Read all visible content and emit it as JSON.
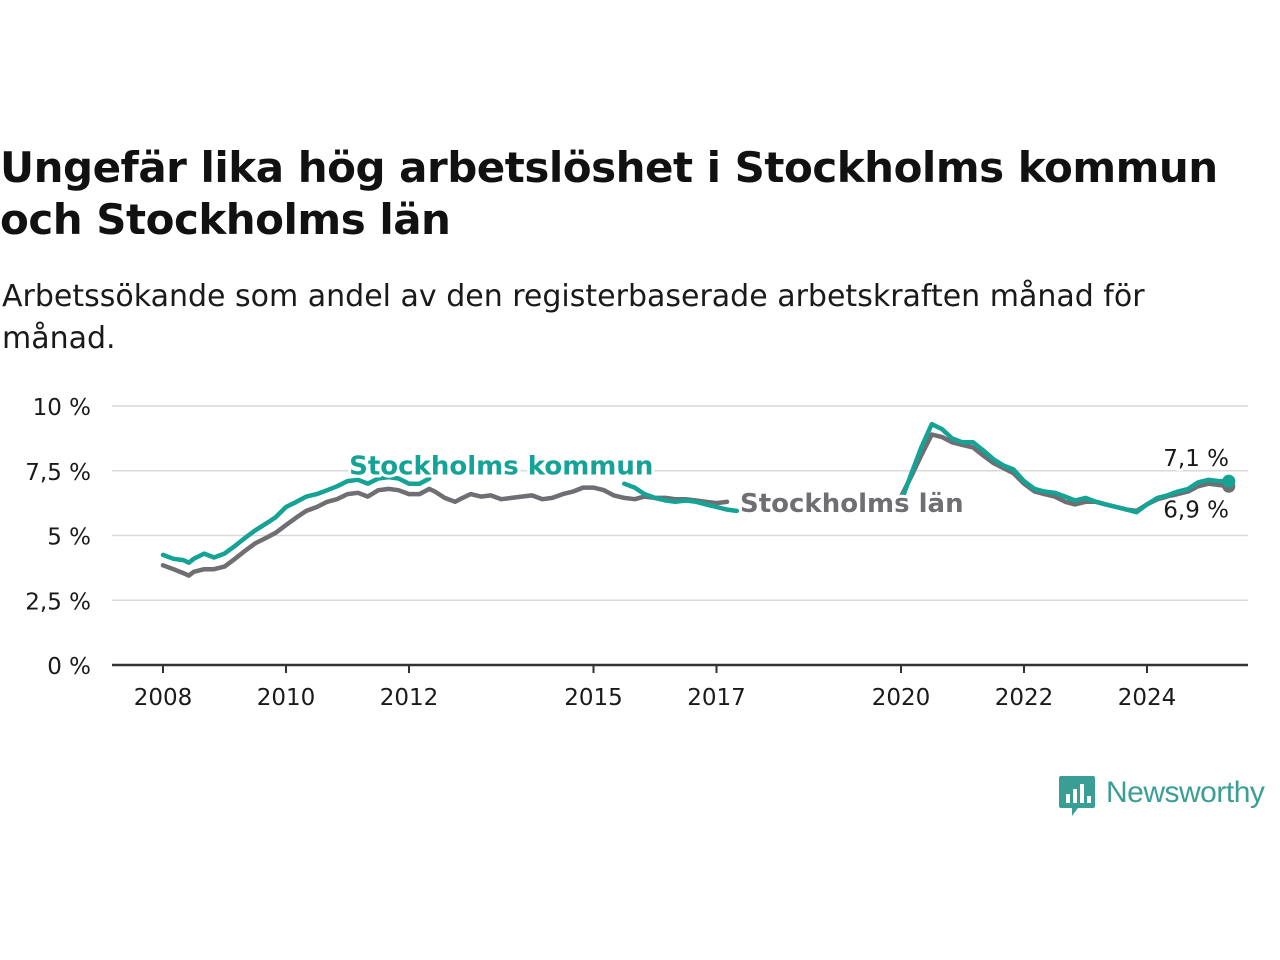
{
  "title": "Ungefär lika hög arbetslöshet i Stockholms kommun och Stockholms län",
  "subtitle": "Arbetssökande som andel av den registerbaserade arbetskraften månad för månad.",
  "brand": {
    "name": "Newsworthy",
    "color": "#3a9e95"
  },
  "chart_data": {
    "type": "line",
    "title": "Ungefär lika hög arbetslöshet i Stockholms kommun och Stockholms län",
    "subtitle": "Arbetssökande som andel av den registerbaserade arbetskraften månad för månad.",
    "xlabel": "",
    "ylabel": "",
    "ylim": [
      0,
      10
    ],
    "xlim": [
      2007.2,
      2025.5
    ],
    "grid": "horizontal",
    "y_ticks": [
      {
        "value": 0,
        "label": "0 %"
      },
      {
        "value": 2.5,
        "label": "2,5 %"
      },
      {
        "value": 5,
        "label": "5 %"
      },
      {
        "value": 7.5,
        "label": "7,5 %"
      },
      {
        "value": 10,
        "label": "10 %"
      }
    ],
    "x_ticks": [
      {
        "value": 2008.0,
        "label": "2008"
      },
      {
        "value": 2010.0,
        "label": "2010"
      },
      {
        "value": 2012.0,
        "label": "2012"
      },
      {
        "value": 2015.0,
        "label": "2015"
      },
      {
        "value": 2017.0,
        "label": "2017"
      },
      {
        "value": 2020.0,
        "label": "2020"
      },
      {
        "value": 2022.0,
        "label": "2022"
      },
      {
        "value": 2024.0,
        "label": "2024"
      }
    ],
    "series": [
      {
        "name": "Stockholms län",
        "color": "#6e6e73",
        "end_label": "6,9 %",
        "segments": [
          [
            [
              2008.0,
              3.85
            ],
            [
              2008.17,
              3.7
            ],
            [
              2008.33,
              3.55
            ],
            [
              2008.42,
              3.45
            ],
            [
              2008.5,
              3.6
            ],
            [
              2008.67,
              3.7
            ],
            [
              2008.83,
              3.7
            ],
            [
              2009.0,
              3.8
            ],
            [
              2009.17,
              4.1
            ],
            [
              2009.33,
              4.4
            ],
            [
              2009.5,
              4.7
            ],
            [
              2009.67,
              4.9
            ],
            [
              2009.83,
              5.1
            ],
            [
              2010.0,
              5.4
            ],
            [
              2010.17,
              5.7
            ],
            [
              2010.33,
              5.95
            ],
            [
              2010.5,
              6.1
            ],
            [
              2010.67,
              6.3
            ],
            [
              2010.83,
              6.4
            ],
            [
              2011.0,
              6.6
            ],
            [
              2011.17,
              6.65
            ],
            [
              2011.33,
              6.5
            ],
            [
              2011.5,
              6.75
            ],
            [
              2011.67,
              6.8
            ],
            [
              2011.83,
              6.75
            ],
            [
              2012.0,
              6.6
            ],
            [
              2012.17,
              6.6
            ],
            [
              2012.33,
              6.8
            ],
            [
              2012.42,
              6.7
            ],
            [
              2012.58,
              6.45
            ],
            [
              2012.75,
              6.3
            ],
            [
              2012.83,
              6.4
            ],
            [
              2013.0,
              6.6
            ],
            [
              2013.17,
              6.5
            ],
            [
              2013.33,
              6.55
            ],
            [
              2013.5,
              6.4
            ],
            [
              2013.67,
              6.45
            ],
            [
              2013.83,
              6.5
            ],
            [
              2014.0,
              6.55
            ],
            [
              2014.17,
              6.4
            ],
            [
              2014.33,
              6.45
            ],
            [
              2014.5,
              6.6
            ],
            [
              2014.67,
              6.7
            ],
            [
              2014.83,
              6.85
            ],
            [
              2015.0,
              6.85
            ],
            [
              2015.17,
              6.75
            ],
            [
              2015.33,
              6.55
            ],
            [
              2015.5,
              6.45
            ],
            [
              2015.67,
              6.4
            ],
            [
              2015.83,
              6.5
            ],
            [
              2016.0,
              6.45
            ],
            [
              2016.17,
              6.45
            ],
            [
              2016.33,
              6.4
            ],
            [
              2016.5,
              6.4
            ],
            [
              2016.67,
              6.35
            ],
            [
              2016.83,
              6.3
            ],
            [
              2017.0,
              6.25
            ],
            [
              2017.17,
              6.3
            ]
          ],
          [
            [
              2020.0,
              6.5
            ],
            [
              2020.17,
              7.3
            ],
            [
              2020.33,
              8.1
            ],
            [
              2020.5,
              8.9
            ],
            [
              2020.67,
              8.8
            ],
            [
              2020.83,
              8.6
            ],
            [
              2021.0,
              8.5
            ],
            [
              2021.17,
              8.4
            ],
            [
              2021.33,
              8.1
            ],
            [
              2021.5,
              7.8
            ],
            [
              2021.67,
              7.6
            ],
            [
              2021.83,
              7.4
            ],
            [
              2022.0,
              7.0
            ],
            [
              2022.17,
              6.7
            ],
            [
              2022.33,
              6.6
            ],
            [
              2022.5,
              6.5
            ],
            [
              2022.67,
              6.3
            ],
            [
              2022.83,
              6.2
            ],
            [
              2023.0,
              6.3
            ],
            [
              2023.17,
              6.3
            ],
            [
              2023.33,
              6.2
            ],
            [
              2023.5,
              6.1
            ],
            [
              2023.67,
              6.0
            ],
            [
              2023.83,
              5.95
            ],
            [
              2024.0,
              6.2
            ],
            [
              2024.17,
              6.4
            ],
            [
              2024.33,
              6.5
            ],
            [
              2024.5,
              6.6
            ],
            [
              2024.67,
              6.7
            ],
            [
              2024.83,
              6.9
            ],
            [
              2025.0,
              7.0
            ],
            [
              2025.17,
              6.95
            ],
            [
              2025.33,
              6.9
            ]
          ]
        ]
      },
      {
        "name": "Stockholms kommun",
        "color": "#15a396",
        "end_label": "7,1 %",
        "segments": [
          [
            [
              2008.0,
              4.25
            ],
            [
              2008.17,
              4.1
            ],
            [
              2008.33,
              4.05
            ],
            [
              2008.42,
              3.95
            ],
            [
              2008.5,
              4.1
            ],
            [
              2008.67,
              4.3
            ],
            [
              2008.83,
              4.15
            ],
            [
              2009.0,
              4.3
            ],
            [
              2009.17,
              4.6
            ],
            [
              2009.33,
              4.9
            ],
            [
              2009.5,
              5.2
            ],
            [
              2009.67,
              5.45
            ],
            [
              2009.83,
              5.7
            ],
            [
              2010.0,
              6.1
            ],
            [
              2010.17,
              6.3
            ],
            [
              2010.33,
              6.5
            ],
            [
              2010.5,
              6.6
            ],
            [
              2010.67,
              6.75
            ],
            [
              2010.83,
              6.9
            ],
            [
              2011.0,
              7.1
            ],
            [
              2011.17,
              7.15
            ],
            [
              2011.33,
              7.0
            ],
            [
              2011.5,
              7.2
            ],
            [
              2011.67,
              7.25
            ],
            [
              2011.83,
              7.2
            ],
            [
              2012.0,
              7.0
            ],
            [
              2012.17,
              7.0
            ],
            [
              2012.33,
              7.2
            ]
          ],
          [
            [
              2015.5,
              7.0
            ],
            [
              2015.67,
              6.85
            ],
            [
              2015.83,
              6.6
            ],
            [
              2016.0,
              6.45
            ],
            [
              2016.17,
              6.35
            ],
            [
              2016.33,
              6.3
            ],
            [
              2016.5,
              6.35
            ],
            [
              2016.67,
              6.3
            ],
            [
              2016.83,
              6.2
            ],
            [
              2017.0,
              6.1
            ],
            [
              2017.17,
              6.0
            ],
            [
              2017.33,
              5.95
            ]
          ],
          [
            [
              2020.0,
              6.3
            ],
            [
              2020.17,
              7.4
            ],
            [
              2020.33,
              8.4
            ],
            [
              2020.5,
              9.3
            ],
            [
              2020.67,
              9.1
            ],
            [
              2020.83,
              8.75
            ],
            [
              2021.0,
              8.6
            ],
            [
              2021.17,
              8.6
            ],
            [
              2021.33,
              8.3
            ],
            [
              2021.5,
              7.95
            ],
            [
              2021.67,
              7.7
            ],
            [
              2021.83,
              7.55
            ],
            [
              2022.0,
              7.1
            ],
            [
              2022.17,
              6.8
            ],
            [
              2022.33,
              6.7
            ],
            [
              2022.5,
              6.65
            ],
            [
              2022.67,
              6.5
            ],
            [
              2022.83,
              6.35
            ],
            [
              2023.0,
              6.45
            ],
            [
              2023.17,
              6.3
            ],
            [
              2023.33,
              6.2
            ],
            [
              2023.5,
              6.1
            ],
            [
              2023.67,
              6.0
            ],
            [
              2023.83,
              5.9
            ],
            [
              2024.0,
              6.2
            ],
            [
              2024.17,
              6.45
            ],
            [
              2024.33,
              6.55
            ],
            [
              2024.5,
              6.7
            ],
            [
              2024.67,
              6.8
            ],
            [
              2024.83,
              7.05
            ],
            [
              2025.0,
              7.15
            ],
            [
              2025.17,
              7.1
            ],
            [
              2025.33,
              7.1
            ]
          ]
        ]
      }
    ],
    "series_labels": [
      {
        "series": "Stockholms kommun",
        "text": "Stockholms kommun",
        "x": 2013.5,
        "y": 7.35
      },
      {
        "series": "Stockholms län",
        "text": "Stockholms län",
        "x": 2019.2,
        "y": 5.9
      }
    ]
  }
}
